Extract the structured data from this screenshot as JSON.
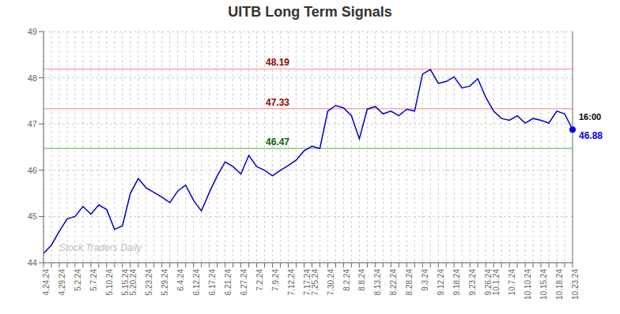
{
  "chart_data": {
    "type": "line",
    "title": "UITB Long Term Signals",
    "categories": [
      "4.24.24",
      null,
      "4.29.24",
      null,
      "5.2.24",
      null,
      "5.7.24",
      null,
      "5.10.24",
      null,
      "5.15.24",
      "5.20.24",
      null,
      "5.23.24",
      null,
      "5.29.24",
      null,
      "6.4.24",
      null,
      "6.12.24",
      null,
      "6.17.24",
      null,
      "6.21.24",
      null,
      "6.27.24",
      null,
      "7.2.24",
      null,
      "7.9.24",
      null,
      "7.12.24",
      null,
      "7.17.24",
      "7.25.24",
      null,
      "7.30.24",
      null,
      "8.2.24",
      null,
      "8.8.24",
      null,
      "8.13.24",
      null,
      "8.22.24",
      null,
      "8.28.24",
      null,
      "9.3.24",
      null,
      "9.12.24",
      null,
      "9.18.24",
      null,
      "9.23.24",
      null,
      "9.26.24",
      "10.1.24",
      null,
      "10.7.24",
      null,
      "10.10.24",
      null,
      "10.15.24",
      null,
      "10.18.24",
      null,
      "10.23.24"
    ],
    "values": [
      44.2,
      44.38,
      44.68,
      44.95,
      45.0,
      45.22,
      45.05,
      45.25,
      45.15,
      44.72,
      44.8,
      45.5,
      45.82,
      45.62,
      45.52,
      45.42,
      45.3,
      45.55,
      45.68,
      45.35,
      45.12,
      45.52,
      45.88,
      46.18,
      46.08,
      45.92,
      46.32,
      46.08,
      46.0,
      45.88,
      46.0,
      46.1,
      46.22,
      46.42,
      46.52,
      46.47,
      47.28,
      47.4,
      47.35,
      47.18,
      46.68,
      47.32,
      47.38,
      47.22,
      47.28,
      47.18,
      47.32,
      47.28,
      48.08,
      48.18,
      47.88,
      47.92,
      48.02,
      47.78,
      47.82,
      47.98,
      47.58,
      47.28,
      47.12,
      47.08,
      47.18,
      47.02,
      47.12,
      47.08,
      47.02,
      47.28,
      47.22,
      46.88
    ],
    "color": "#0000cc",
    "ylim": [
      44,
      49
    ],
    "yticks": [
      44,
      45,
      46,
      47,
      48,
      49
    ],
    "grid": true,
    "hlines": [
      {
        "value": 48.19,
        "label": "48.19",
        "color": "#ffaaaa",
        "label_color": "#990000"
      },
      {
        "value": 47.33,
        "label": "47.33",
        "color": "#ffaaaa",
        "label_color": "#990000"
      },
      {
        "value": 46.47,
        "label": "46.47",
        "color": "#88cc88",
        "label_color": "#006600"
      }
    ],
    "last_point": {
      "price_label": "46.88",
      "time_label": "16:00",
      "color": "#0000ee",
      "vline_color": "#888888"
    },
    "watermark": {
      "text": "Stock Traders Daily",
      "color": "#bbbbbb"
    }
  }
}
